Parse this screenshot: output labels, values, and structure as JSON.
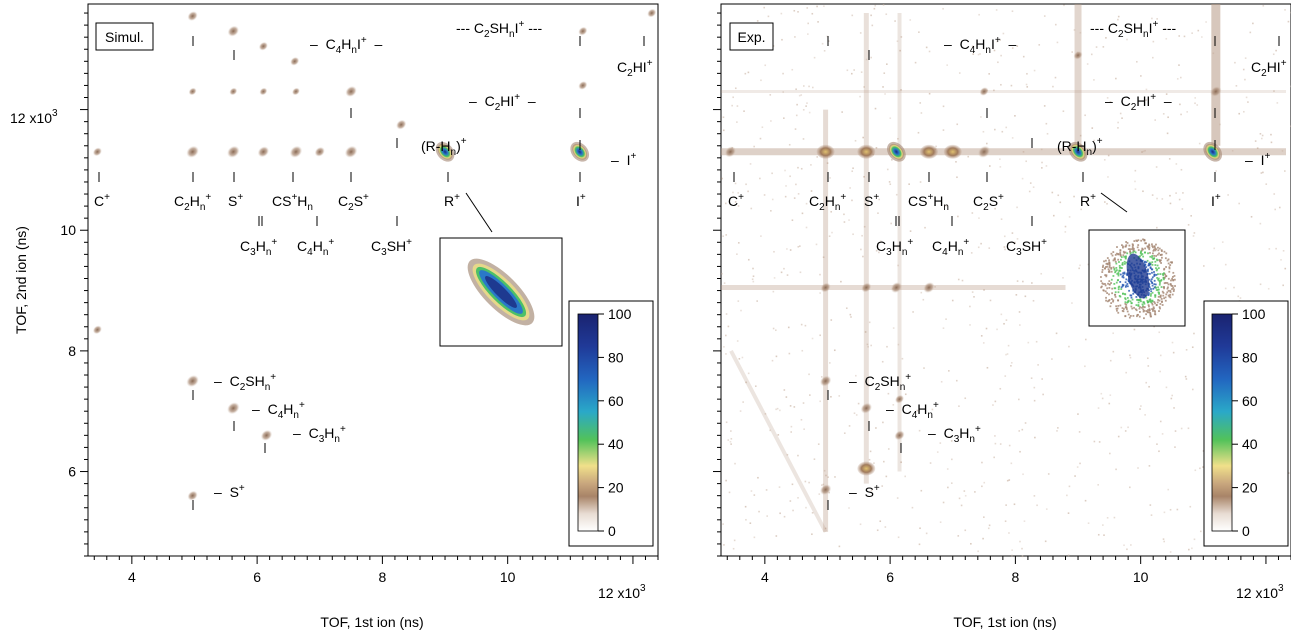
{
  "chart_data": [
    {
      "type": "heatmap",
      "panel_label": "Simul.",
      "xlabel": "TOF, 1st ion (ns)",
      "ylabel": "TOF, 2nd ion (ns)",
      "x_multiplier": "x10",
      "x_exponent": "3",
      "y_multiplier": "x10",
      "y_exponent": "3",
      "xlim": [
        3.3,
        12.4
      ],
      "ylim": [
        4.6,
        13.75
      ],
      "x_ticks": [
        4,
        6,
        8,
        10,
        12
      ],
      "y_ticks": [
        6,
        8,
        10,
        12
      ],
      "colorbar": {
        "range": [
          0,
          100
        ],
        "ticks": [
          0,
          20,
          40,
          60,
          80,
          100
        ]
      },
      "inset": "zoom of the (R-Hn)+ / R+ coincidence island",
      "islands": [
        {
          "x": 4.97,
          "y": 13.55,
          "i": 20
        },
        {
          "x": 5.62,
          "y": 13.3,
          "i": 25
        },
        {
          "x": 6.1,
          "y": 13.05,
          "i": 15
        },
        {
          "x": 6.6,
          "y": 12.8,
          "i": 15
        },
        {
          "x": 7.5,
          "y": 12.3,
          "i": 25
        },
        {
          "x": 8.3,
          "y": 11.75,
          "i": 20
        },
        {
          "x": 9.0,
          "y": 11.3,
          "i": 100
        },
        {
          "x": 11.15,
          "y": 11.3,
          "i": 70
        },
        {
          "x": 12.3,
          "y": 13.6,
          "i": 15
        },
        {
          "x": 11.2,
          "y": 13.3,
          "i": 15
        },
        {
          "x": 11.2,
          "y": 12.4,
          "i": 15
        },
        {
          "x": 3.45,
          "y": 11.3,
          "i": 15
        },
        {
          "x": 4.97,
          "y": 11.3,
          "i": 30
        },
        {
          "x": 5.62,
          "y": 11.3,
          "i": 30
        },
        {
          "x": 6.1,
          "y": 11.3,
          "i": 25
        },
        {
          "x": 6.62,
          "y": 11.3,
          "i": 30
        },
        {
          "x": 7.0,
          "y": 11.3,
          "i": 20
        },
        {
          "x": 7.5,
          "y": 11.3,
          "i": 30
        },
        {
          "x": 4.97,
          "y": 12.3,
          "i": 10
        },
        {
          "x": 5.62,
          "y": 12.3,
          "i": 10
        },
        {
          "x": 6.1,
          "y": 12.3,
          "i": 10
        },
        {
          "x": 6.62,
          "y": 12.3,
          "i": 10
        },
        {
          "x": 3.45,
          "y": 8.35,
          "i": 15
        },
        {
          "x": 4.97,
          "y": 7.5,
          "i": 30
        },
        {
          "x": 5.62,
          "y": 7.05,
          "i": 30
        },
        {
          "x": 6.15,
          "y": 6.6,
          "i": 25
        },
        {
          "x": 4.97,
          "y": 5.6,
          "i": 20
        }
      ],
      "labels": [
        {
          "text": "C",
          "sub": "",
          "sup": "+"
        },
        {
          "text": "C2Hn+",
          "base": "C",
          "sub": "2",
          "mid": "H",
          "sub2": "n",
          "sup": "+"
        },
        {
          "text": "S+",
          "base": "S",
          "sup": "+"
        },
        {
          "text": "CS+Hn"
        },
        {
          "text": "C2S+"
        },
        {
          "text": "C3Hn+"
        },
        {
          "text": "C4Hn+"
        },
        {
          "text": "C3SH+"
        },
        {
          "text": "(R-Hn)+"
        },
        {
          "text": "R+"
        },
        {
          "text": "I+"
        },
        {
          "text": "C4HnI+"
        },
        {
          "text": "C2SHnI+"
        },
        {
          "text": "C2HI+"
        },
        {
          "text": "C2SHn+"
        },
        {
          "text": "S+"
        }
      ]
    },
    {
      "type": "heatmap",
      "panel_label": "Exp.",
      "xlabel": "TOF, 1st ion (ns)",
      "ylabel": "",
      "x_multiplier": "x10",
      "x_exponent": "3",
      "xlim": [
        3.3,
        12.4
      ],
      "ylim": [
        4.6,
        13.75
      ],
      "x_ticks": [
        4,
        6,
        8,
        10,
        12
      ],
      "colorbar": {
        "range": [
          0,
          100
        ],
        "ticks": [
          0,
          20,
          40,
          60,
          80,
          100
        ]
      },
      "inset": "zoom of the (R-Hn)+ / R+ coincidence island",
      "islands": [
        {
          "x": 4.97,
          "y": 11.3,
          "i": 45
        },
        {
          "x": 5.62,
          "y": 11.3,
          "i": 45
        },
        {
          "x": 6.1,
          "y": 11.3,
          "i": 65
        },
        {
          "x": 6.62,
          "y": 11.3,
          "i": 40
        },
        {
          "x": 7.0,
          "y": 11.3,
          "i": 40
        },
        {
          "x": 7.5,
          "y": 11.3,
          "i": 30
        },
        {
          "x": 3.45,
          "y": 11.3,
          "i": 25
        },
        {
          "x": 9.0,
          "y": 11.3,
          "i": 100
        },
        {
          "x": 11.15,
          "y": 11.3,
          "i": 80
        },
        {
          "x": 5.62,
          "y": 9.05,
          "i": 20
        },
        {
          "x": 6.1,
          "y": 9.05,
          "i": 25
        },
        {
          "x": 6.62,
          "y": 9.05,
          "i": 25
        },
        {
          "x": 4.97,
          "y": 9.05,
          "i": 20
        },
        {
          "x": 4.97,
          "y": 7.5,
          "i": 25
        },
        {
          "x": 5.62,
          "y": 7.05,
          "i": 25
        },
        {
          "x": 6.15,
          "y": 6.6,
          "i": 20
        },
        {
          "x": 5.62,
          "y": 6.05,
          "i": 35
        },
        {
          "x": 4.97,
          "y": 5.7,
          "i": 25
        },
        {
          "x": 6.15,
          "y": 7.2,
          "i": 15
        },
        {
          "x": 7.5,
          "y": 12.3,
          "i": 15
        },
        {
          "x": 11.2,
          "y": 12.3,
          "i": 25
        },
        {
          "x": 9.0,
          "y": 12.9,
          "i": 15
        }
      ],
      "labels": [
        {
          "text": "C+"
        },
        {
          "text": "C2Hn+"
        },
        {
          "text": "S+"
        },
        {
          "text": "CS+Hn"
        },
        {
          "text": "C2S+"
        },
        {
          "text": "C3Hn+"
        },
        {
          "text": "C4Hn+"
        },
        {
          "text": "C3SH+"
        },
        {
          "text": "(R-Hn)+"
        },
        {
          "text": "R+"
        },
        {
          "text": "I+"
        },
        {
          "text": "C4HnI+"
        },
        {
          "text": "C2SHnI+"
        },
        {
          "text": "C2HI+"
        },
        {
          "text": "C2SHn+"
        },
        {
          "text": "S+"
        }
      ]
    }
  ],
  "colors": {
    "cb_stops": [
      "#ffffff",
      "#e6d6cc",
      "#b38a6e",
      "#9e7a5c",
      "#e8d58a",
      "#5cc24e",
      "#2ea0d8",
      "#2255b0",
      "#1c2a78"
    ],
    "axis": "#000000"
  }
}
